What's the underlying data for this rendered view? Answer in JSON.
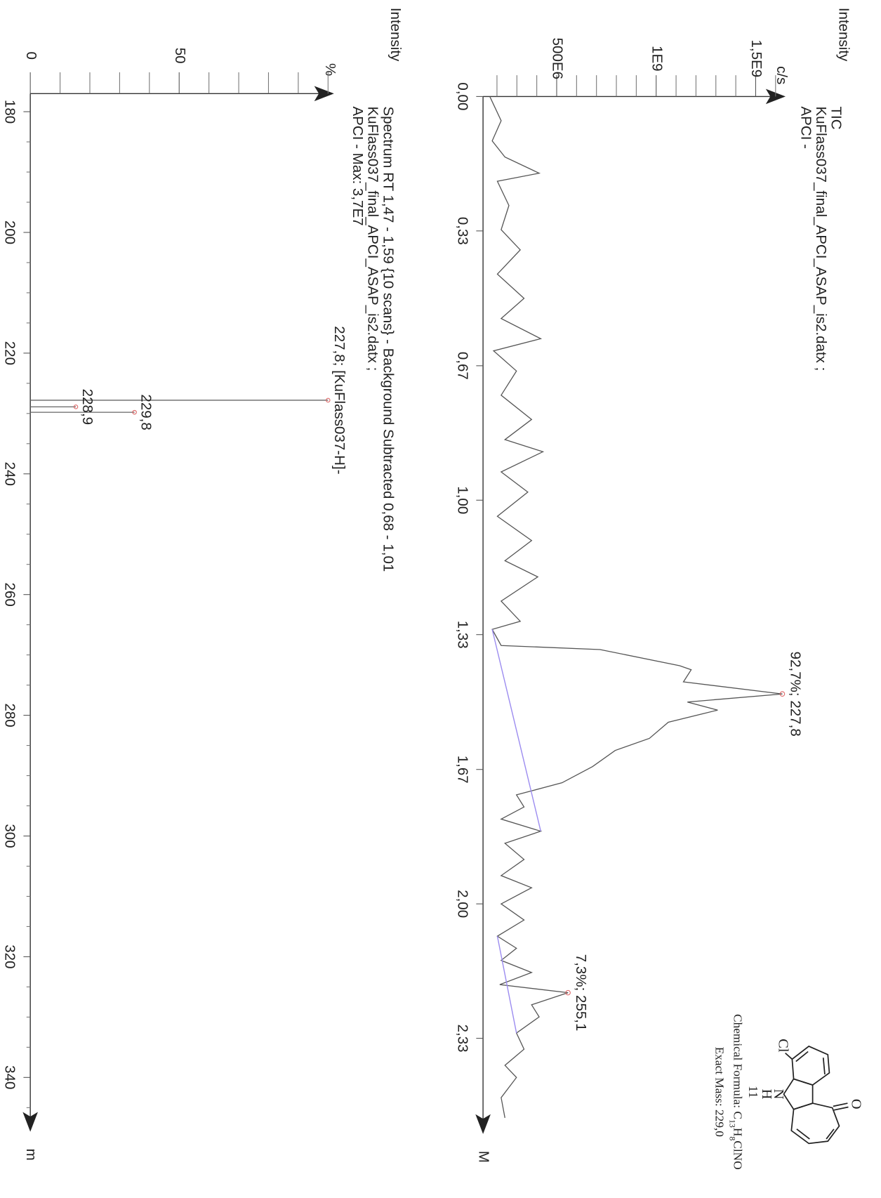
{
  "chart_data": [
    {
      "type": "line",
      "y_label": "Intensity",
      "y_unit": "c/s",
      "title": "TIC",
      "subtitle": [
        "KuFlass037_final_APCI_ASAP_is2.datx  ;",
        "APCI -"
      ],
      "x_label": "M",
      "x": [
        0.0,
        0.06,
        0.11,
        0.15,
        0.19,
        0.21,
        0.27,
        0.33,
        0.38,
        0.44,
        0.5,
        0.55,
        0.6,
        0.63,
        0.68,
        0.74,
        0.8,
        0.85,
        0.88,
        0.93,
        0.98,
        1.04,
        1.1,
        1.15,
        1.19,
        1.25,
        1.3,
        1.32,
        1.36,
        1.37,
        1.41,
        1.42,
        1.45,
        1.48,
        1.5,
        1.52,
        1.55,
        1.59,
        1.62,
        1.66,
        1.7,
        1.73,
        1.76,
        1.79,
        1.82,
        1.85,
        1.89,
        1.93,
        1.96,
        2.0,
        2.04,
        2.08,
        2.11,
        2.14,
        2.17,
        2.2,
        2.22,
        2.25,
        2.28,
        2.32,
        2.36,
        2.4,
        2.43,
        2.48,
        2.53
      ],
      "values": [
        164000000,
        221000000,
        176000000,
        240000000,
        412000000,
        202000000,
        260000000,
        221000000,
        317000000,
        202000000,
        336000000,
        221000000,
        420000000,
        183000000,
        298000000,
        221000000,
        374000000,
        240000000,
        431000000,
        221000000,
        355000000,
        202000000,
        374000000,
        240000000,
        405000000,
        221000000,
        317000000,
        176000000,
        221000000,
        718000000,
        1118000000,
        1176000000,
        1137000000,
        1634000000,
        1157000000,
        1309000000,
        1061000000,
        966000000,
        794000000,
        680000000,
        527000000,
        298000000,
        336000000,
        221000000,
        420000000,
        240000000,
        336000000,
        221000000,
        374000000,
        221000000,
        336000000,
        202000000,
        298000000,
        221000000,
        374000000,
        214000000,
        557000000,
        374000000,
        412000000,
        298000000,
        336000000,
        240000000,
        298000000,
        221000000,
        240000000
      ],
      "color": "#555555",
      "xlim": [
        0,
        2.57
      ],
      "ylim": [
        130000000,
        1650000000
      ],
      "xticks": [
        {
          "value": 0,
          "label": "0,00"
        },
        {
          "value": 0.333,
          "label": "0,33"
        },
        {
          "value": 0.667,
          "label": "0,67"
        },
        {
          "value": 1,
          "label": "1,00"
        },
        {
          "value": 1.333,
          "label": "1,33"
        },
        {
          "value": 1.667,
          "label": "1,67"
        },
        {
          "value": 2,
          "label": "2,00"
        },
        {
          "value": 2.333,
          "label": "2,33"
        }
      ],
      "yticks": [
        {
          "value": 500000000,
          "label": "500E6"
        },
        {
          "value": 1000000000,
          "label": "1E9"
        },
        {
          "value": 1500000000,
          "label": "1,5E9"
        }
      ],
      "yminor": [
        200000000,
        300000000,
        400000000,
        600000000,
        700000000,
        800000000,
        900000000,
        1100000000,
        1200000000,
        1300000000,
        1400000000,
        1600000000
      ],
      "annotations": [
        {
          "text": "92,7%; 227,8",
          "x": 1.48,
          "y": 1634000000
        },
        {
          "text": "7,3%; 255,1",
          "x": 2.22,
          "y": 557000000
        }
      ],
      "baselines": [
        {
          "color": "#9c8cf0",
          "x": [
            1.32,
            1.82
          ],
          "values": [
            176000000,
            420000000
          ]
        },
        {
          "color": "#9c8cf0",
          "x": [
            2.08,
            2.32
          ],
          "values": [
            202000000,
            298000000
          ]
        }
      ]
    },
    {
      "type": "stem",
      "y_label": "Intensity",
      "y_unit": "%",
      "title": "Spectrum RT 1,47 - 1,59 {10 scans} - Background Subtracted 0,68 - 1,01",
      "subtitle": [
        "KuFlass037_final_APCI_ASAP_is2.datx  ;",
        "APCI - Max: 3,7E7"
      ],
      "x_label": "m",
      "x": [
        227.8,
        228.9,
        229.8
      ],
      "values": [
        100,
        15.3,
        35
      ],
      "peak_labels": [
        "227,8; [KuFlass037-H]-",
        "228,9",
        "229,8"
      ],
      "color": "#666666",
      "xlim": [
        177,
        349
      ],
      "ylim": [
        0,
        102
      ],
      "xticks": [
        180,
        200,
        220,
        240,
        260,
        280,
        300,
        320,
        340
      ],
      "xminor": [
        185,
        190,
        195,
        205,
        210,
        215,
        225,
        230,
        235,
        245,
        250,
        255,
        265,
        270,
        275,
        285,
        290,
        295,
        305,
        310,
        315,
        325,
        330,
        335,
        345
      ],
      "yticks": [
        0,
        50
      ],
      "yminor": [
        10,
        20,
        30,
        40,
        60,
        70,
        80,
        90,
        100
      ]
    }
  ],
  "structure": {
    "atoms": [
      "O",
      "N",
      "H",
      "Cl"
    ],
    "compound": "11",
    "formula": [
      "Chemical Formula: C",
      "13",
      "H",
      "8",
      "ClNO"
    ],
    "mass": "Exact Mass: 229,0"
  }
}
